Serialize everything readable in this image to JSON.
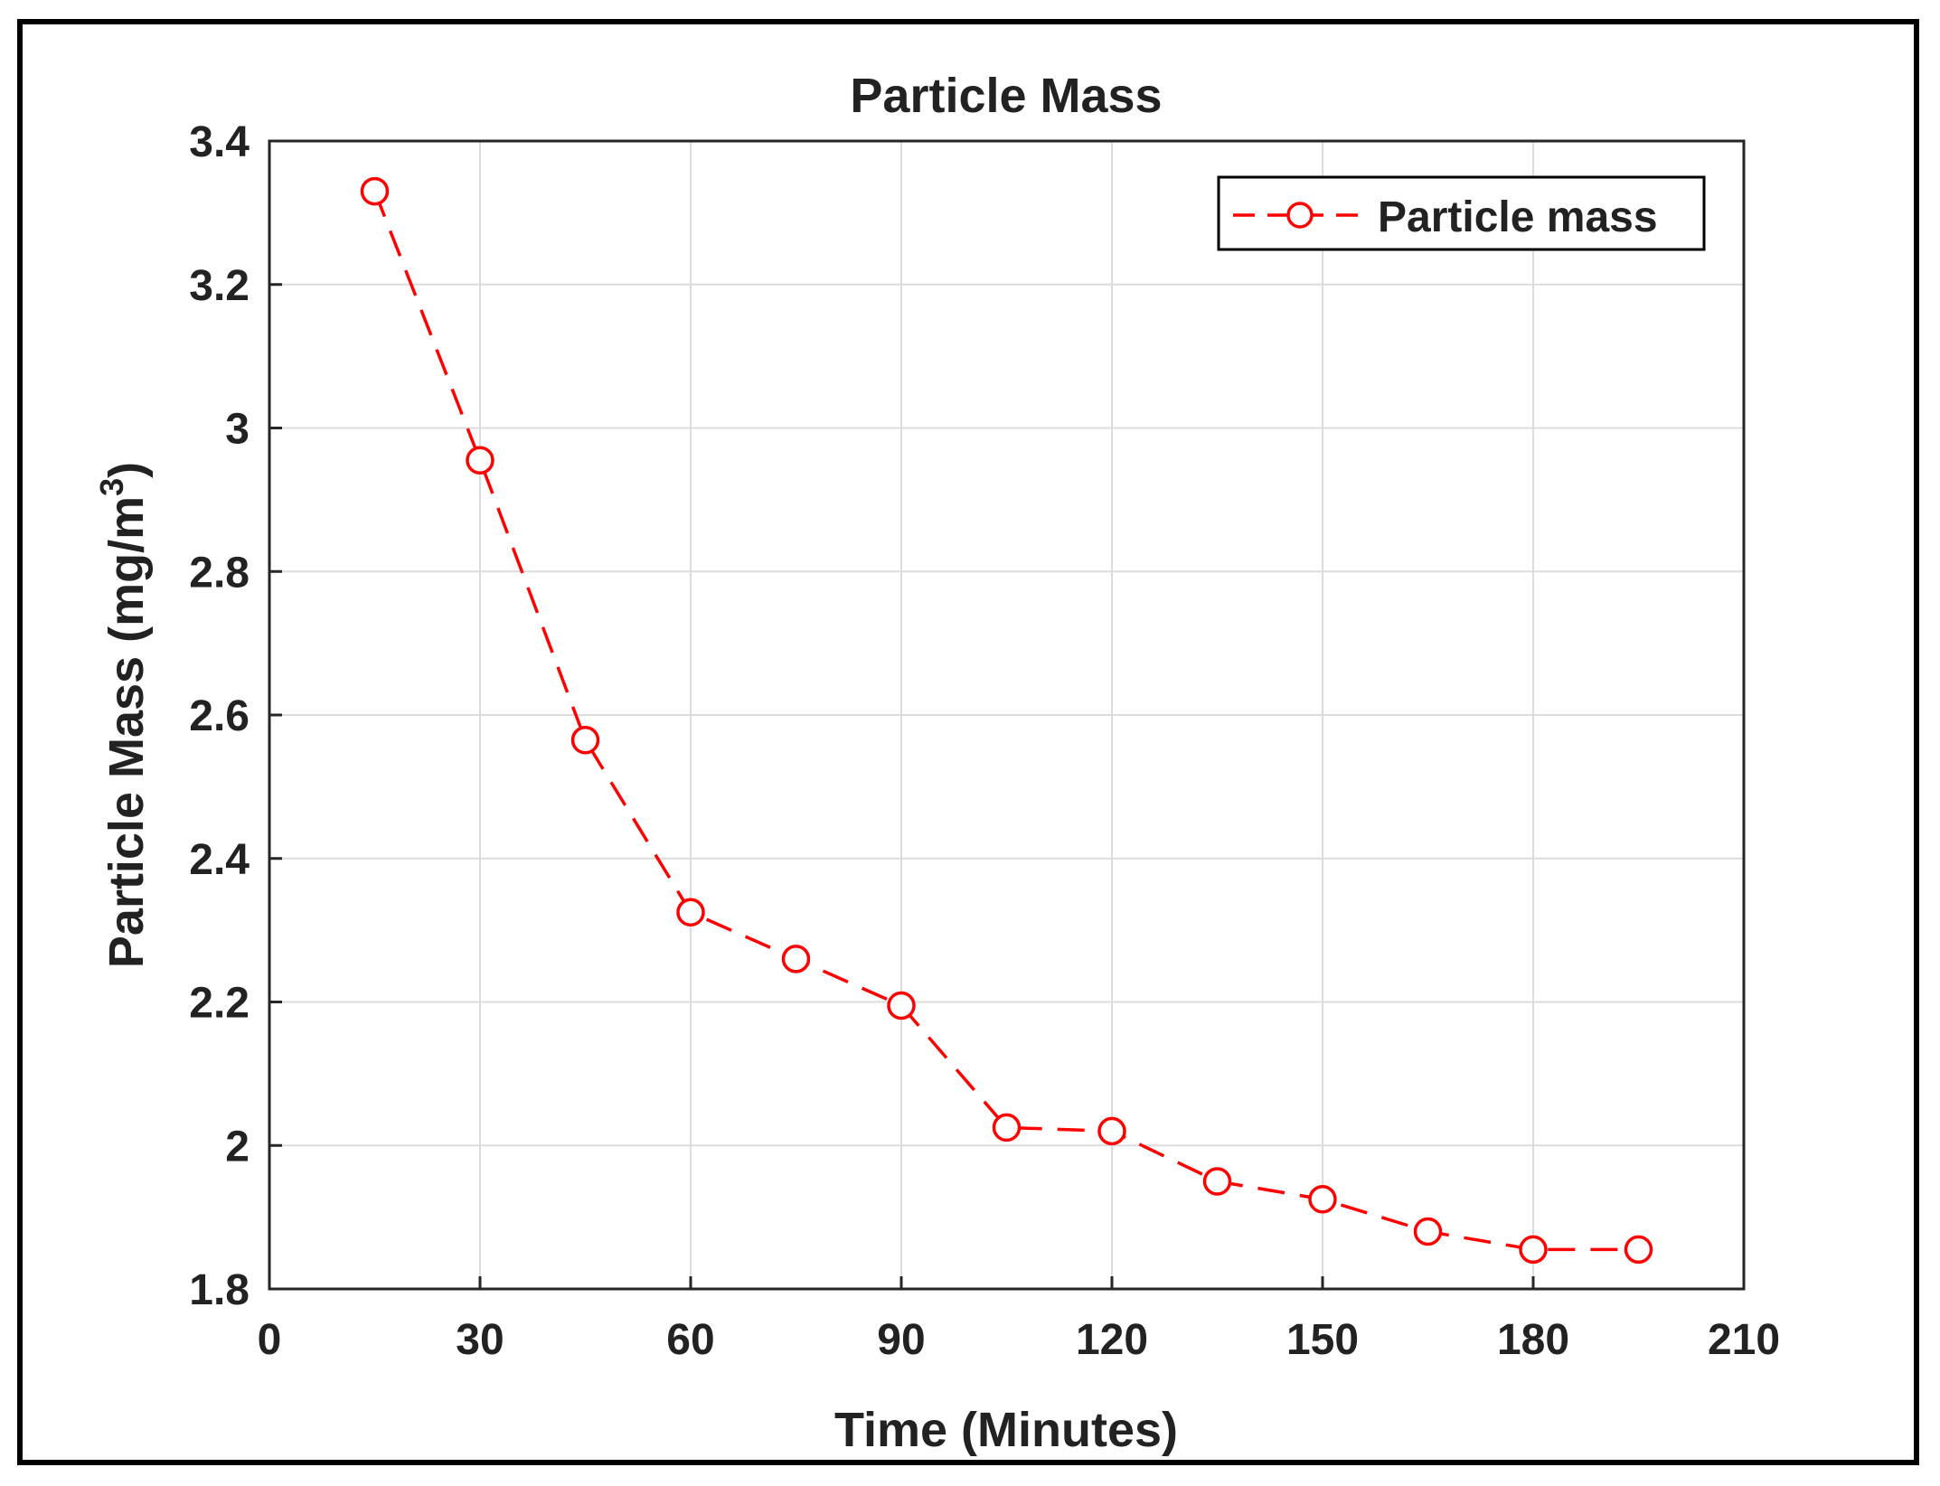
{
  "chart_data": {
    "type": "line",
    "title": "Particle Mass",
    "xlabel": "Time (Minutes)",
    "ylabel": "Particle Mass (mg/m",
    "ylabel_superscript": "3",
    "ylabel_suffix": ")",
    "xlim": [
      0,
      210
    ],
    "ylim": [
      1.8,
      3.4
    ],
    "xticks": [
      0,
      30,
      60,
      90,
      120,
      150,
      180,
      210
    ],
    "yticks": [
      1.8,
      2.0,
      2.2,
      2.4,
      2.6,
      2.8,
      3.0,
      3.2,
      3.4
    ],
    "xtick_labels": [
      "0",
      "30",
      "60",
      "90",
      "120",
      "150",
      "180",
      "210"
    ],
    "ytick_labels": [
      "1.8",
      "2",
      "2.2",
      "2.4",
      "2.6",
      "2.8",
      "3",
      "3.2",
      "3.4"
    ],
    "grid": true,
    "legend_position": "top-right",
    "series": [
      {
        "name": "Particle mass",
        "color": "#ff0000",
        "line_style": "dashed",
        "marker": "open-circle",
        "x": [
          15,
          30,
          45,
          60,
          75,
          90,
          105,
          120,
          135,
          150,
          165,
          180,
          195
        ],
        "y": [
          3.33,
          2.955,
          2.565,
          2.325,
          2.26,
          2.195,
          2.025,
          2.02,
          1.95,
          1.925,
          1.88,
          1.855,
          1.855
        ]
      }
    ]
  }
}
